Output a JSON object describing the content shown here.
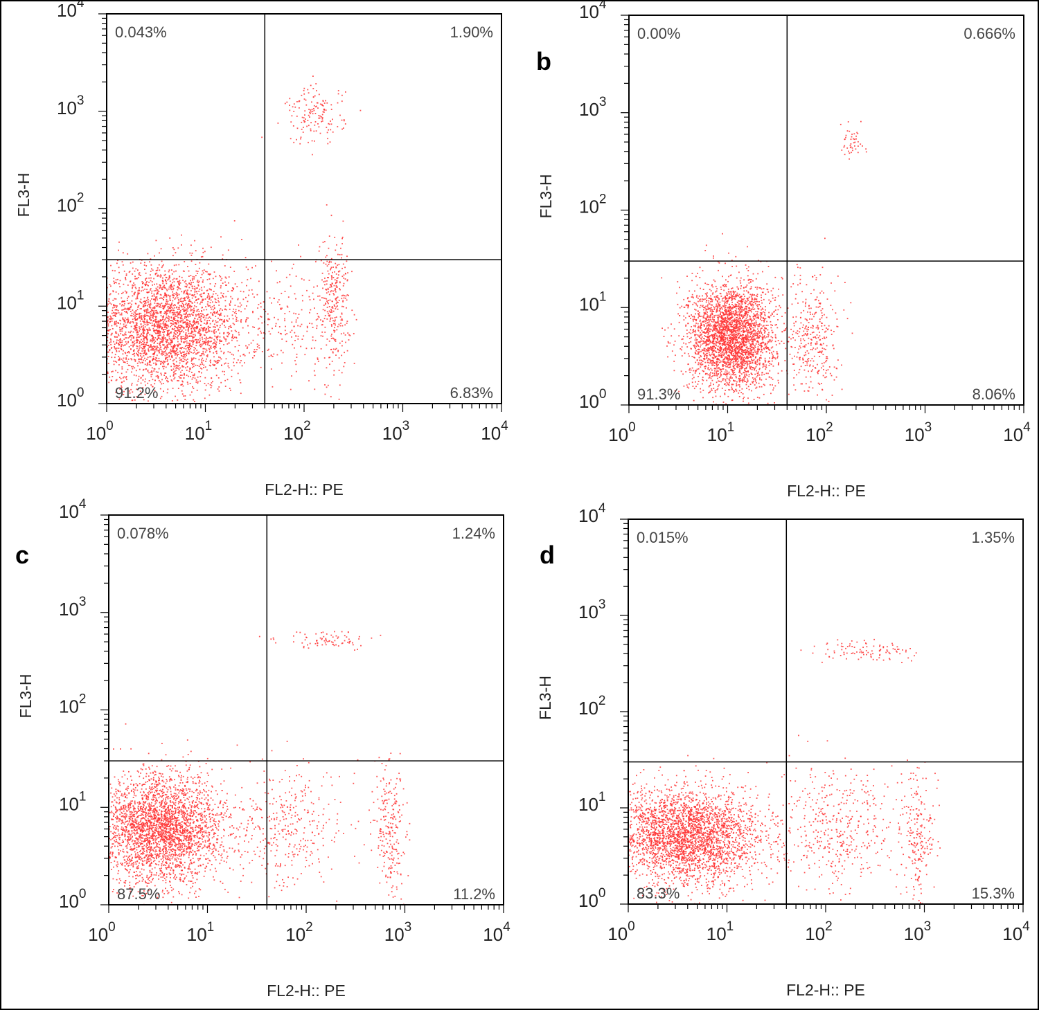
{
  "chart_data": [
    {
      "type": "scatter",
      "panel_label": "",
      "xlabel": "FL2-H:: PE",
      "ylabel": "FL3-H",
      "x_scale": "log",
      "y_scale": "log",
      "xlim": [
        1,
        10000
      ],
      "ylim": [
        1,
        10000
      ],
      "x_ticks": [
        "10^0",
        "10^1",
        "10^2",
        "10^3",
        "10^4"
      ],
      "y_ticks": [
        "10^0",
        "10^1",
        "10^2",
        "10^3",
        "10^4"
      ],
      "point_color": "#ff3333",
      "gate": {
        "x": 40,
        "y": 30
      },
      "quadrants": {
        "upper_left": "0.043%",
        "upper_right": "1.90%",
        "lower_left": "91.2%",
        "lower_right": "6.83%"
      },
      "clusters": [
        {
          "x": 4,
          "y": 6,
          "spread_x": 0.42,
          "spread_y": 0.32,
          "n": 3200
        },
        {
          "x": 200,
          "y": 12,
          "spread_x": 0.08,
          "spread_y": 0.32,
          "n": 280
        },
        {
          "x": 90,
          "y": 6,
          "spread_x": 0.22,
          "spread_y": 0.35,
          "n": 160
        },
        {
          "x": 130,
          "y": 900,
          "spread_x": 0.15,
          "spread_y": 0.15,
          "n": 150
        }
      ]
    },
    {
      "type": "scatter",
      "panel_label": "b",
      "xlabel": "FL2-H:: PE",
      "ylabel": "FL3-H",
      "x_scale": "log",
      "y_scale": "log",
      "xlim": [
        1,
        10000
      ],
      "ylim": [
        1,
        10000
      ],
      "x_ticks": [
        "10^0",
        "10^1",
        "10^2",
        "10^3",
        "10^4"
      ],
      "y_ticks": [
        "10^0",
        "10^1",
        "10^2",
        "10^3",
        "10^4"
      ],
      "point_color": "#ff3333",
      "gate": {
        "x": 40,
        "y": 30
      },
      "quadrants": {
        "upper_left": "0.00%",
        "upper_right": "0.666%",
        "lower_left": "91.3%",
        "lower_right": "8.06%"
      },
      "clusters": [
        {
          "x": 11,
          "y": 5,
          "spread_x": 0.22,
          "spread_y": 0.28,
          "n": 3000
        },
        {
          "x": 75,
          "y": 5,
          "spread_x": 0.12,
          "spread_y": 0.32,
          "n": 320
        },
        {
          "x": 180,
          "y": 500,
          "spread_x": 0.07,
          "spread_y": 0.08,
          "n": 45
        }
      ]
    },
    {
      "type": "scatter",
      "panel_label": "c",
      "xlabel": "FL2-H:: PE",
      "ylabel": "FL3-H",
      "x_scale": "log",
      "y_scale": "log",
      "xlim": [
        1,
        10000
      ],
      "ylim": [
        1,
        10000
      ],
      "x_ticks": [
        "10^0",
        "10^1",
        "10^2",
        "10^3",
        "10^4"
      ],
      "y_ticks": [
        "10^0",
        "10^1",
        "10^2",
        "10^3",
        "10^4"
      ],
      "point_color": "#ff3333",
      "gate": {
        "x": 40,
        "y": 30
      },
      "quadrants": {
        "upper_left": "0.078%",
        "upper_right": "1.24%",
        "lower_left": "87.5%",
        "lower_right": "11.2%"
      },
      "clusters": [
        {
          "x": 3.5,
          "y": 6,
          "spread_x": 0.32,
          "spread_y": 0.28,
          "n": 3000
        },
        {
          "x": 70,
          "y": 6,
          "spread_x": 0.28,
          "spread_y": 0.3,
          "n": 340
        },
        {
          "x": 700,
          "y": 6,
          "spread_x": 0.08,
          "spread_y": 0.35,
          "n": 230
        },
        {
          "x": 180,
          "y": 520,
          "spread_x": 0.25,
          "spread_y": 0.05,
          "n": 80
        }
      ]
    },
    {
      "type": "scatter",
      "panel_label": "d",
      "xlabel": "FL2-H:: PE",
      "ylabel": "FL3-H",
      "x_scale": "log",
      "y_scale": "log",
      "xlim": [
        1,
        10000
      ],
      "ylim": [
        1,
        10000
      ],
      "x_ticks": [
        "10^0",
        "10^1",
        "10^2",
        "10^3",
        "10^4"
      ],
      "y_ticks": [
        "10^0",
        "10^1",
        "10^2",
        "10^3",
        "10^4"
      ],
      "point_color": "#ff3333",
      "gate": {
        "x": 40,
        "y": 30
      },
      "quadrants": {
        "upper_left": "0.015%",
        "upper_right": "1.35%",
        "lower_left": "83.3%",
        "lower_right": "15.3%"
      },
      "clusters": [
        {
          "x": 4,
          "y": 5,
          "spread_x": 0.38,
          "spread_y": 0.25,
          "n": 3000
        },
        {
          "x": 130,
          "y": 6,
          "spread_x": 0.3,
          "spread_y": 0.3,
          "n": 420
        },
        {
          "x": 850,
          "y": 5,
          "spread_x": 0.08,
          "spread_y": 0.35,
          "n": 220
        },
        {
          "x": 250,
          "y": 430,
          "spread_x": 0.28,
          "spread_y": 0.06,
          "n": 100
        }
      ]
    }
  ]
}
